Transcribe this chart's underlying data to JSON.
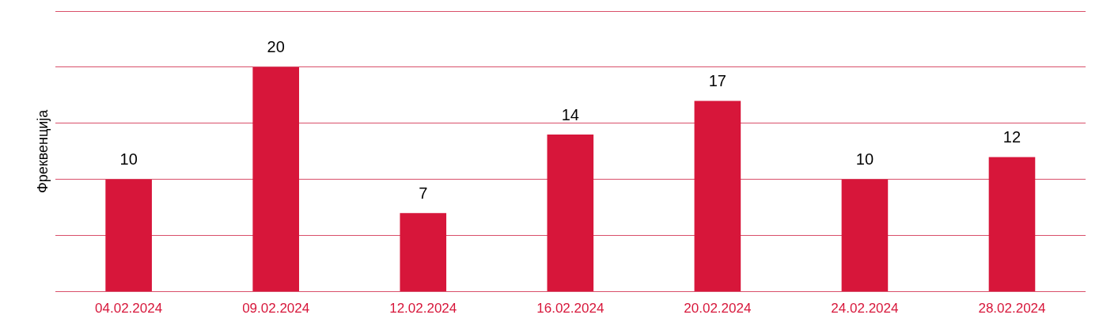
{
  "chart_data": {
    "type": "bar",
    "ylabel": "Фреквенција",
    "categories": [
      "04.02.2024",
      "09.02.2024",
      "12.02.2024",
      "16.02.2024",
      "20.02.2024",
      "24.02.2024",
      "28.02.2024"
    ],
    "values": [
      10,
      20,
      7,
      14,
      17,
      10,
      12
    ],
    "color": "#d7163a",
    "ylim": [
      0,
      25
    ],
    "yticks": [
      {
        "value": 0,
        "label": null
      },
      {
        "value": 5,
        "label": null
      },
      {
        "value": 10,
        "label": null
      },
      {
        "value": 15,
        "label": null
      },
      {
        "value": 20,
        "label": null
      },
      {
        "value": 25,
        "label": null
      }
    ],
    "tick_labels": "x",
    "grid": "y",
    "legend": false,
    "data_labels": true
  }
}
